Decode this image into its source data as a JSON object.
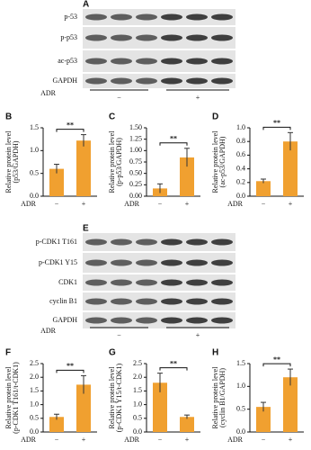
{
  "blots": [
    {
      "panel": "A",
      "rows": [
        "p-53",
        "p-p53",
        "ac-p53",
        "GAPDH"
      ],
      "adr_label": "ADR",
      "groups": [
        "−",
        "+"
      ]
    },
    {
      "panel": "E",
      "rows": [
        "p-CDK1 T161",
        "p-CDK1 Y15",
        "CDK1",
        "cyclin B1",
        "GAPDH"
      ],
      "adr_label": "ADR",
      "groups": [
        "−",
        "+"
      ]
    }
  ],
  "chart_data": [
    {
      "type": "bar",
      "panel": "B",
      "ylabel": [
        "Relative protein level",
        "(p53/GAPDH)"
      ],
      "xlabel": "ADR",
      "categories": [
        "−",
        "+"
      ],
      "values": [
        0.6,
        1.22
      ],
      "errors": [
        0.1,
        0.13
      ],
      "color": "#f0a030",
      "significance": "**",
      "ylim": [
        0,
        1.5
      ],
      "yticks": [
        {
          "value": 0,
          "label": "0.0"
        },
        0.5,
        {
          "value": 1,
          "label": "1.0"
        },
        1.5
      ]
    },
    {
      "type": "bar",
      "panel": "C",
      "ylabel": [
        "Relative protein level",
        "(p-p53/GAPDH)"
      ],
      "xlabel": "ADR",
      "categories": [
        "−",
        "+"
      ],
      "values": [
        0.17,
        0.85
      ],
      "errors": [
        0.1,
        0.2
      ],
      "color": "#f0a030",
      "significance": "**",
      "ylim": [
        0,
        1.5
      ],
      "yticks": [
        {
          "value": 0,
          "label": "0.00"
        },
        0.25,
        {
          "value": 0.5,
          "label": "0.50"
        },
        0.75,
        {
          "value": 1,
          "label": "1.00"
        },
        1.25,
        {
          "value": 1.5,
          "label": "1.50"
        }
      ]
    },
    {
      "type": "bar",
      "panel": "D",
      "ylabel": [
        "Relative protein level",
        "(ac-p53/GAPDH)"
      ],
      "xlabel": "ADR",
      "categories": [
        "−",
        "+"
      ],
      "values": [
        0.22,
        0.8
      ],
      "errors": [
        0.03,
        0.13
      ],
      "color": "#f0a030",
      "significance": "**",
      "ylim": [
        0,
        1
      ],
      "yticks": [
        {
          "value": 0,
          "label": "0.0"
        },
        0.2,
        0.4,
        0.6,
        0.8,
        {
          "value": 1,
          "label": "1.0"
        }
      ]
    },
    {
      "type": "bar",
      "panel": "F",
      "ylabel": [
        "Relative protein level",
        "(p-CDK1 T161/t-CDK1)"
      ],
      "xlabel": "ADR",
      "categories": [
        "−",
        "+"
      ],
      "values": [
        0.55,
        1.73
      ],
      "errors": [
        0.1,
        0.33
      ],
      "color": "#f0a030",
      "significance": "**",
      "ylim": [
        0,
        2.5
      ],
      "yticks": [
        {
          "value": 0,
          "label": "0.0"
        },
        0.5,
        {
          "value": 1,
          "label": "1.0"
        },
        1.5,
        {
          "value": 2,
          "label": "2.0"
        },
        2.5
      ]
    },
    {
      "type": "bar",
      "panel": "G",
      "ylabel": [
        "Relative protein level",
        "(p-CDK1 Y15/t-CDK1)"
      ],
      "xlabel": "ADR",
      "categories": [
        "−",
        "+"
      ],
      "values": [
        1.8,
        0.55
      ],
      "errors": [
        0.35,
        0.07
      ],
      "color": "#f0a030",
      "significance": "**",
      "ylim": [
        0,
        2.5
      ],
      "yticks": [
        {
          "value": 0,
          "label": "0.0"
        },
        0.5,
        {
          "value": 1,
          "label": "1.0"
        },
        1.5,
        {
          "value": 2,
          "label": "2.0"
        },
        2.5
      ]
    },
    {
      "type": "bar",
      "panel": "H",
      "ylabel": [
        "Relative protein level",
        "(cyclin B1/GAPDH)"
      ],
      "xlabel": "ADR",
      "categories": [
        "−",
        "+"
      ],
      "values": [
        0.55,
        1.2
      ],
      "errors": [
        0.1,
        0.18
      ],
      "color": "#f0a030",
      "significance": "**",
      "ylim": [
        0,
        1.5
      ],
      "yticks": [
        {
          "value": 0,
          "label": "0.0"
        },
        0.5,
        {
          "value": 1,
          "label": "1.0"
        },
        1.5
      ]
    }
  ]
}
